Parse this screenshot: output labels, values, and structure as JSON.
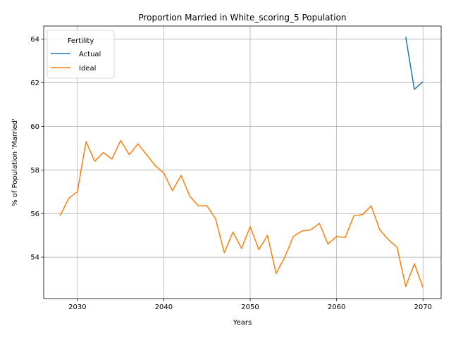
{
  "chart_data": {
    "type": "line",
    "title": "Proportion Married in White_scoring_5 Population",
    "xlabel": "Years",
    "ylabel": "% of Population 'Married'",
    "xlim": [
      2026.1,
      2072.1
    ],
    "ylim": [
      52.1,
      64.6
    ],
    "x_ticks": [
      2030,
      2040,
      2050,
      2060,
      2070
    ],
    "y_ticks": [
      54,
      56,
      58,
      60,
      62,
      64
    ],
    "grid": true,
    "legend": {
      "title": "Fertility",
      "position": "top-left"
    },
    "series": [
      {
        "name": "Actual",
        "color": "#1f77b4",
        "x": [
          2068,
          2069,
          2070
        ],
        "y": [
          64.1,
          61.7,
          62.05
        ]
      },
      {
        "name": "Ideal",
        "color": "#ff7f0e",
        "x": [
          2028,
          2029,
          2030,
          2031,
          2032,
          2033,
          2034,
          2035,
          2036,
          2037,
          2038,
          2039,
          2040,
          2041,
          2042,
          2043,
          2044,
          2045,
          2046,
          2047,
          2048,
          2049,
          2050,
          2051,
          2052,
          2053,
          2054,
          2055,
          2056,
          2057,
          2058,
          2059,
          2060,
          2061,
          2062,
          2063,
          2064,
          2065,
          2066,
          2067,
          2068,
          2069,
          2070
        ],
        "y": [
          55.9,
          56.7,
          57.0,
          59.3,
          58.4,
          58.8,
          58.5,
          59.35,
          58.7,
          59.2,
          58.7,
          58.2,
          57.85,
          57.05,
          57.75,
          56.8,
          56.35,
          56.35,
          55.75,
          54.2,
          55.15,
          54.4,
          55.4,
          54.35,
          55.0,
          53.25,
          54.0,
          54.95,
          55.2,
          55.25,
          55.55,
          54.6,
          54.95,
          54.9,
          55.9,
          55.95,
          56.35,
          55.25,
          54.8,
          54.45,
          52.65,
          53.7,
          52.6
        ]
      }
    ]
  }
}
